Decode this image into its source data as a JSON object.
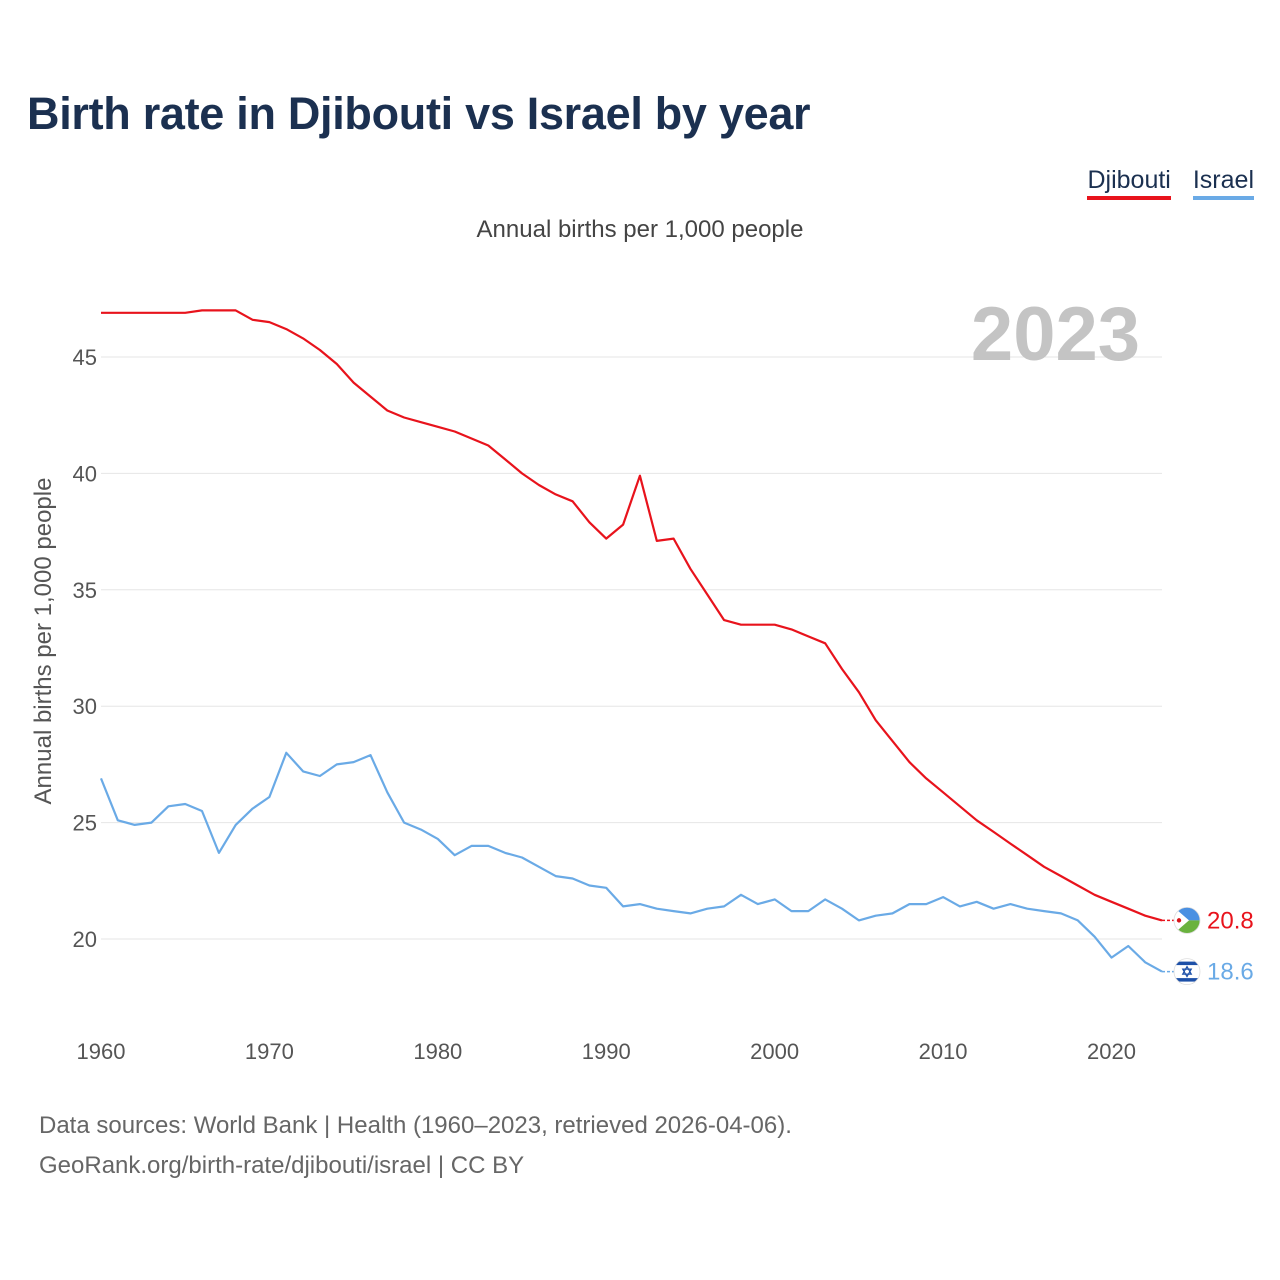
{
  "header": {
    "title": "Birth rate in Djibouti vs Israel by year",
    "subtitle": "Annual births per 1,000 people"
  },
  "legend": [
    {
      "label": "Djibouti",
      "color": "#e8131c"
    },
    {
      "label": "Israel",
      "color": "#6aaae6"
    }
  ],
  "year_watermark": "2023",
  "chart_data": {
    "type": "line",
    "title": "Birth rate in Djibouti vs Israel by year",
    "subtitle": "Annual births per 1,000 people",
    "xlabel": "",
    "ylabel": "Annual births per 1,000 people",
    "xlim": [
      1960,
      2023
    ],
    "ylim": [
      17,
      48.5
    ],
    "xticks": [
      1960,
      1970,
      1980,
      1990,
      2000,
      2010,
      2020
    ],
    "yticks": [
      20,
      25,
      30,
      35,
      40,
      45
    ],
    "grid": true,
    "x": [
      1960,
      1961,
      1962,
      1963,
      1964,
      1965,
      1966,
      1967,
      1968,
      1969,
      1970,
      1971,
      1972,
      1973,
      1974,
      1975,
      1976,
      1977,
      1978,
      1979,
      1980,
      1981,
      1982,
      1983,
      1984,
      1985,
      1986,
      1987,
      1988,
      1989,
      1990,
      1991,
      1992,
      1993,
      1994,
      1995,
      1996,
      1997,
      1998,
      1999,
      2000,
      2001,
      2002,
      2003,
      2004,
      2005,
      2006,
      2007,
      2008,
      2009,
      2010,
      2011,
      2012,
      2013,
      2014,
      2015,
      2016,
      2017,
      2018,
      2019,
      2020,
      2021,
      2022,
      2023
    ],
    "series": [
      {
        "name": "Djibouti",
        "color": "#e8131c",
        "end_label": "20.8",
        "values": [
          46.9,
          46.9,
          46.9,
          46.9,
          46.9,
          46.9,
          47.0,
          47.0,
          47.0,
          46.6,
          46.5,
          46.2,
          45.8,
          45.3,
          44.7,
          43.9,
          43.3,
          42.7,
          42.4,
          42.2,
          42.0,
          41.8,
          41.5,
          41.2,
          40.6,
          40.0,
          39.5,
          39.1,
          38.8,
          37.9,
          37.2,
          37.8,
          39.9,
          37.1,
          37.2,
          35.9,
          34.8,
          33.7,
          33.5,
          33.5,
          33.5,
          33.3,
          33.0,
          32.7,
          31.6,
          30.6,
          29.4,
          28.5,
          27.6,
          26.9,
          26.3,
          25.7,
          25.1,
          24.6,
          24.1,
          23.6,
          23.1,
          22.7,
          22.3,
          21.9,
          21.6,
          21.3,
          21.0,
          20.8
        ]
      },
      {
        "name": "Israel",
        "color": "#6aaae6",
        "end_label": "18.6",
        "values": [
          26.9,
          25.1,
          24.9,
          25.0,
          25.7,
          25.8,
          25.5,
          23.7,
          24.9,
          25.6,
          26.1,
          28.0,
          27.2,
          27.0,
          27.5,
          27.6,
          27.9,
          26.3,
          25.0,
          24.7,
          24.3,
          23.6,
          24.0,
          24.0,
          23.7,
          23.5,
          23.1,
          22.7,
          22.6,
          22.3,
          22.2,
          21.4,
          21.5,
          21.3,
          21.2,
          21.1,
          21.3,
          21.4,
          21.9,
          21.5,
          21.7,
          21.2,
          21.2,
          21.7,
          21.3,
          20.8,
          21.0,
          21.1,
          21.5,
          21.5,
          21.8,
          21.4,
          21.6,
          21.3,
          21.5,
          21.3,
          21.2,
          21.1,
          20.8,
          20.1,
          19.2,
          19.7,
          19.0,
          18.6
        ]
      }
    ]
  },
  "footer": {
    "source_line": "Data sources: World Bank | Health (1960–2023, retrieved 2026-04-06).",
    "url_line": "GeoRank.org/birth-rate/djibouti/israel | CC BY"
  }
}
